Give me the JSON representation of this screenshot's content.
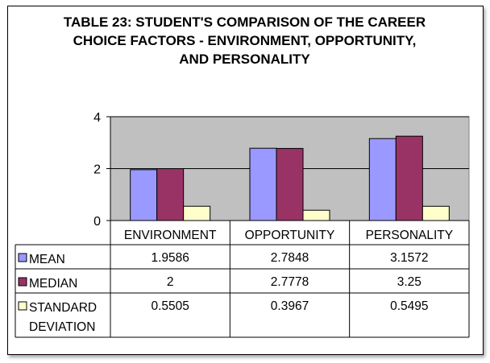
{
  "chart_data": {
    "type": "bar",
    "title": "TABLE 23: STUDENT'S COMPARISON OF THE CAREER\nCHOICE FACTORS - ENVIRONMENT, OPPORTUNITY,\nAND PERSONALITY",
    "categories": [
      "ENVIRONMENT",
      "OPPORTUNITY",
      "PERSONALITY"
    ],
    "series": [
      {
        "name": "MEAN",
        "values": [
          1.9586,
          2.7848,
          3.1572
        ],
        "labels": [
          "1.9586",
          "2.7848",
          "3.1572"
        ],
        "color": "#9999FF"
      },
      {
        "name": "MEDIAN",
        "values": [
          2,
          2.7778,
          3.25
        ],
        "labels": [
          "2",
          "2.7778",
          "3.25"
        ],
        "color": "#993366"
      },
      {
        "name": "STANDARD\nDEVIATION",
        "values": [
          0.5505,
          0.3967,
          0.5495
        ],
        "labels": [
          "0.5505",
          "0.3967",
          "0.5495"
        ],
        "color": "#FFFFCC"
      }
    ],
    "ylim": [
      0,
      4
    ],
    "yticks": [
      "0",
      "2",
      "4"
    ],
    "grid": true,
    "plot_background": "#C0C0C0",
    "legend": "data-table"
  }
}
